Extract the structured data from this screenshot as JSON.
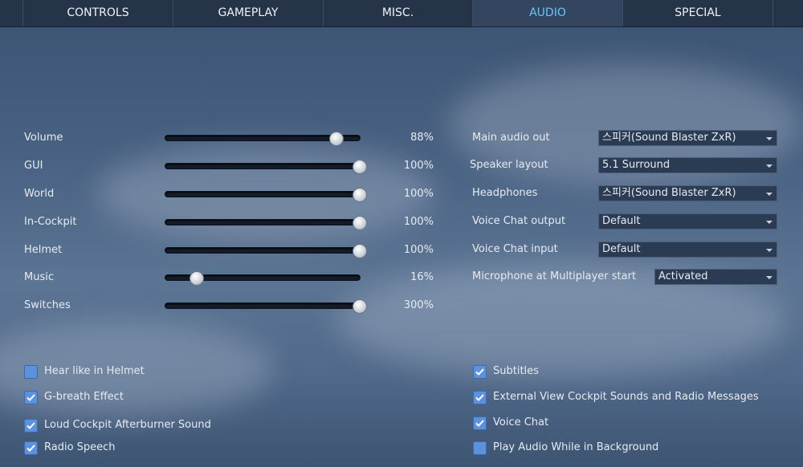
{
  "tabs": [
    "CONTROLS",
    "GAMEPLAY",
    "MISC.",
    "AUDIO",
    "SPECIAL"
  ],
  "active_tab": 3,
  "sliders": [
    {
      "label": "Volume",
      "value": 88,
      "value_label": "88%",
      "range": [
        0,
        100
      ]
    },
    {
      "label": "GUI",
      "value": 100,
      "value_label": "100%",
      "range": [
        0,
        100
      ]
    },
    {
      "label": "World",
      "value": 100,
      "value_label": "100%",
      "range": [
        0,
        100
      ]
    },
    {
      "label": "In-Cockpit",
      "value": 100,
      "value_label": "100%",
      "range": [
        0,
        100
      ]
    },
    {
      "label": "Helmet",
      "value": 100,
      "value_label": "100%",
      "range": [
        0,
        100
      ]
    },
    {
      "label": "Music",
      "value": 16,
      "value_label": "16%",
      "range": [
        0,
        100
      ]
    },
    {
      "label": "Switches",
      "value": 300,
      "value_label": "300%",
      "range": [
        0,
        300
      ]
    }
  ],
  "dropdowns": [
    {
      "label": "Main audio out",
      "selected": "스피커(Sound Blaster ZxR)"
    },
    {
      "label": "Speaker layout",
      "selected": "5.1 Surround"
    },
    {
      "label": "Headphones",
      "selected": "스피커(Sound Blaster ZxR)"
    },
    {
      "label": "Voice Chat output",
      "selected": "Default"
    },
    {
      "label": "Voice Chat input",
      "selected": "Default"
    },
    {
      "label": "Microphone at Multiplayer start",
      "selected": "Activated"
    }
  ],
  "checkboxes_left": [
    {
      "label": "Hear like in Helmet",
      "checked": false
    },
    {
      "label": "G-breath Effect",
      "checked": true
    },
    {
      "label": "Loud Cockpit Afterburner Sound",
      "checked": true
    },
    {
      "label": "Radio Speech",
      "checked": true
    }
  ],
  "checkboxes_right": [
    {
      "label": "Subtitles",
      "checked": true
    },
    {
      "label": "External View Cockpit Sounds and Radio Messages",
      "checked": true
    },
    {
      "label": "Voice Chat",
      "checked": true
    },
    {
      "label": "Play Audio While in Background",
      "checked": false
    }
  ]
}
